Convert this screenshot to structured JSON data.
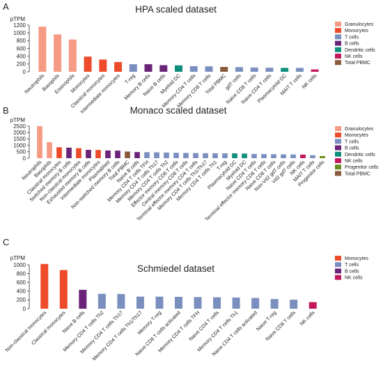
{
  "chart_data": [
    {
      "type": "bar",
      "panel_label": "A",
      "title": "HPA scaled dataset",
      "ylabel": "pTPM",
      "ylim": [
        0,
        1200
      ],
      "yticks": [
        0,
        200,
        400,
        600,
        800,
        1000,
        1200
      ],
      "grid": false,
      "legend_position": "right",
      "legend": [
        {
          "name": "Granulocytes",
          "color": "#f59a83"
        },
        {
          "name": "Monocytes",
          "color": "#ee4b2b"
        },
        {
          "name": "T cells",
          "color": "#7b8fbf"
        },
        {
          "name": "B cells",
          "color": "#6a2378"
        },
        {
          "name": "Dendritic cells",
          "color": "#0e8f7e"
        },
        {
          "name": "NK cells",
          "color": "#c2185b"
        },
        {
          "name": "Total PBMC",
          "color": "#8b5a3c"
        }
      ],
      "categories": [
        "Neutrophils",
        "Basophils",
        "Eosinophils",
        "Monocytes",
        "Classical monocytes",
        "Intermediate monocytes",
        "T-reg",
        "Memory B cells",
        "Naive B cells",
        "Myeloid DC",
        "Memory CD4 T cells",
        "Memory CD8 T cells",
        "Total PBMC",
        "gdT cells",
        "Naive CD8 T cells",
        "Naive CD4 T cells",
        "Plasmacytoid DC",
        "MAIT T cells",
        "NK cells"
      ],
      "values": [
        1160,
        960,
        830,
        390,
        315,
        250,
        195,
        195,
        170,
        165,
        145,
        140,
        125,
        120,
        110,
        105,
        100,
        100,
        60
      ],
      "groups": [
        "Granulocytes",
        "Granulocytes",
        "Granulocytes",
        "Monocytes",
        "Monocytes",
        "Monocytes",
        "T cells",
        "B cells",
        "B cells",
        "Dendritic cells",
        "T cells",
        "T cells",
        "Total PBMC",
        "T cells",
        "T cells",
        "T cells",
        "Dendritic cells",
        "T cells",
        "NK cells"
      ]
    },
    {
      "type": "bar",
      "panel_label": "B",
      "title": "Monaco scaled dataset",
      "ylabel": "pTPM",
      "ylim": [
        0,
        2500
      ],
      "yticks": [
        0,
        500,
        1000,
        1500,
        2000,
        2500
      ],
      "grid": false,
      "legend_position": "right",
      "legend": [
        {
          "name": "Granulocytes",
          "color": "#f59a83"
        },
        {
          "name": "Monocytes",
          "color": "#ee4b2b"
        },
        {
          "name": "T cells",
          "color": "#7b8fbf"
        },
        {
          "name": "B cells",
          "color": "#6a2378"
        },
        {
          "name": "Dendritic cells",
          "color": "#0e8f7e"
        },
        {
          "name": "NK cells",
          "color": "#c2185b"
        },
        {
          "name": "Progenitor cells",
          "color": "#6b8e23"
        },
        {
          "name": "Total PBMC",
          "color": "#8b5a3c"
        }
      ],
      "categories": [
        "Neutrophils",
        "Basophils",
        "Classical monocytes",
        "Switched memory B cells",
        "Non-classical monocytes",
        "Exhausted memory B cells",
        "Intermediate monocytes",
        "Plasmablast",
        "Non-switched memory B cells",
        "Total PBMC",
        "Naive B cells",
        "Memory CD4 T cells TFH",
        "Memory CD4 T cells Th17",
        "Memory CD4 T cells Th2",
        "Effector memory CD8 T cells",
        "Central memory CD8 T cells",
        "Terminal effector memory CD4 T cells",
        "Memory CD4 T cells Th1/Th17",
        "Memory CD4 T cells Th1",
        "T-reg",
        "Plasmacytoid DC",
        "Myeloid DC",
        "Naive CD4 T cells",
        "Terminal effector memory CD8 T cells",
        "Naive CD8 T cells",
        "Non-Vd2 gdT cells",
        "Vd2 gdT cells",
        "NK cells",
        "MAIT T cells",
        "Progenitor cells"
      ],
      "values": [
        2500,
        1250,
        850,
        820,
        780,
        650,
        640,
        600,
        590,
        520,
        480,
        470,
        460,
        440,
        420,
        410,
        400,
        390,
        385,
        380,
        375,
        360,
        330,
        320,
        310,
        300,
        290,
        280,
        230,
        170
      ],
      "groups": [
        "Granulocytes",
        "Granulocytes",
        "Monocytes",
        "B cells",
        "Monocytes",
        "B cells",
        "Monocytes",
        "B cells",
        "B cells",
        "Total PBMC",
        "B cells",
        "T cells",
        "T cells",
        "T cells",
        "T cells",
        "T cells",
        "T cells",
        "T cells",
        "T cells",
        "T cells",
        "Dendritic cells",
        "Dendritic cells",
        "T cells",
        "T cells",
        "T cells",
        "T cells",
        "T cells",
        "NK cells",
        "T cells",
        "Progenitor cells"
      ]
    },
    {
      "type": "bar",
      "panel_label": "C",
      "title": "Schmiedel dataset",
      "ylabel": "pTPM",
      "ylim": [
        0,
        1000
      ],
      "yticks": [
        0,
        200,
        400,
        600,
        800,
        1000
      ],
      "grid": false,
      "legend_position": "right",
      "legend": [
        {
          "name": "Monocytes",
          "color": "#ee4b2b"
        },
        {
          "name": "T cells",
          "color": "#7b8fbf"
        },
        {
          "name": "B cells",
          "color": "#6a2378"
        },
        {
          "name": "NK cells",
          "color": "#c2185b"
        }
      ],
      "categories": [
        "Non-classical monocytes",
        "Classical monocytes",
        "Naive B cells",
        "Memory CD4 T cells Th2",
        "Memory CD4 T cells Th17",
        "Memory CD4 T cells Th1/Th17",
        "Memory T-reg",
        "Naive CD8 T cells activated",
        "Memory CD4 T cells TFH",
        "Naive CD4 T cells",
        "Memory CD4 T cells Th1",
        "Naive CD4 T cells activated",
        "Naive T-reg",
        "Naive CD8 T cells",
        "NK cells"
      ],
      "values": [
        1020,
        880,
        430,
        340,
        335,
        275,
        275,
        270,
        265,
        260,
        255,
        245,
        220,
        205,
        150
      ],
      "groups": [
        "Monocytes",
        "Monocytes",
        "B cells",
        "T cells",
        "T cells",
        "T cells",
        "T cells",
        "T cells",
        "T cells",
        "T cells",
        "T cells",
        "T cells",
        "T cells",
        "T cells",
        "NK cells"
      ]
    }
  ]
}
